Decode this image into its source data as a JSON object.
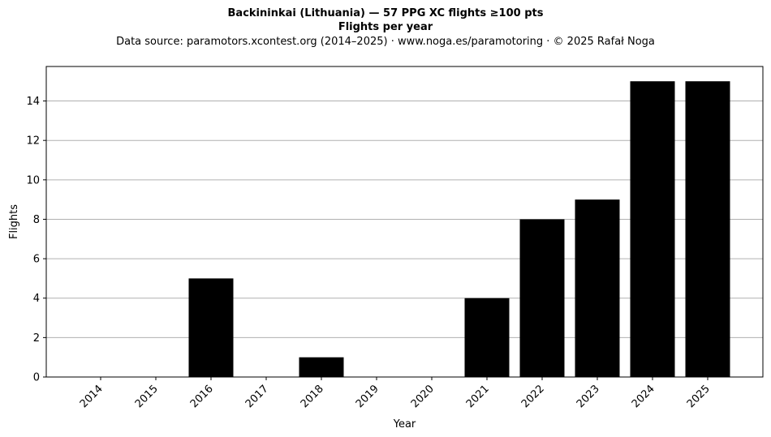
{
  "chart_data": {
    "type": "bar",
    "title": "Backininkai (Lithuania)  —  57 PPG XC flights ≥100 pts",
    "subtitle": "Flights per year",
    "source_note": "Data source: paramotors.xcontest.org (2014–2025)  ·  www.noga.es/paramotoring  ·  © 2025 Rafał Noga",
    "xlabel": "Year",
    "ylabel": "Flights",
    "categories": [
      "2014",
      "2015",
      "2016",
      "2017",
      "2018",
      "2019",
      "2020",
      "2021",
      "2022",
      "2023",
      "2024",
      "2025"
    ],
    "values": [
      0,
      0,
      5,
      0,
      1,
      0,
      0,
      4,
      8,
      9,
      15,
      15
    ],
    "ylim": [
      0,
      15.75
    ],
    "yticks": [
      0,
      2,
      4,
      6,
      8,
      10,
      12,
      14
    ],
    "grid": "y",
    "bar_color": "#000000",
    "grid_color": "#b0b0b0"
  }
}
